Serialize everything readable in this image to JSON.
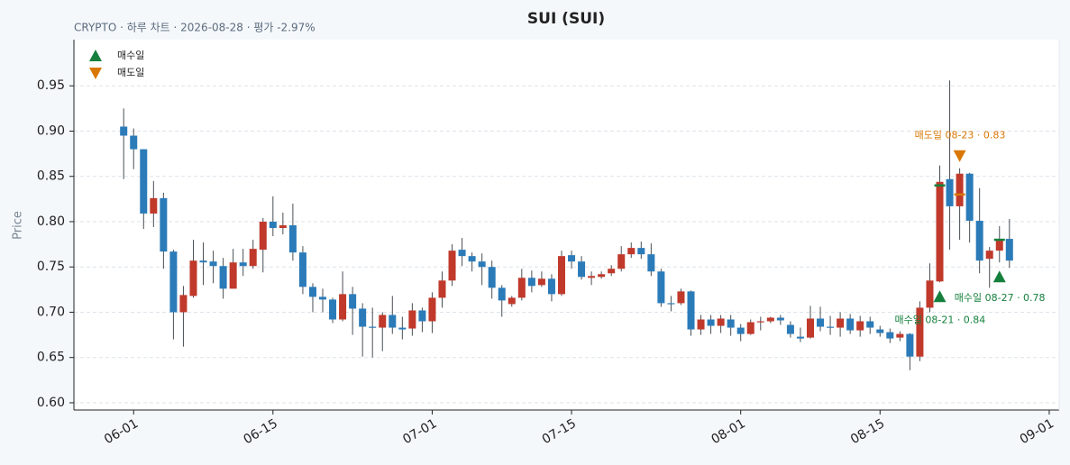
{
  "chart_data": {
    "type": "candlestick",
    "title": "SUI (SUI)",
    "subtitle": "CRYPTO · 하루 차트 · 2026-08-28 · 평가 -2.97%",
    "y_label": "Price",
    "up_color": "#c0392b",
    "down_color": "#2b7bb9",
    "x": [
      "05-31",
      "06-01",
      "06-02",
      "06-03",
      "06-04",
      "06-05",
      "06-06",
      "06-07",
      "06-08",
      "06-09",
      "06-10",
      "06-11",
      "06-12",
      "06-13",
      "06-14",
      "06-15",
      "06-16",
      "06-17",
      "06-18",
      "06-19",
      "06-20",
      "06-21",
      "06-22",
      "06-23",
      "06-24",
      "06-25",
      "06-26",
      "06-27",
      "06-28",
      "06-29",
      "06-30",
      "07-01",
      "07-02",
      "07-03",
      "07-04",
      "07-05",
      "07-06",
      "07-07",
      "07-08",
      "07-09",
      "07-10",
      "07-11",
      "07-12",
      "07-13",
      "07-14",
      "07-15",
      "07-16",
      "07-17",
      "07-18",
      "07-19",
      "07-20",
      "07-21",
      "07-22",
      "07-23",
      "07-24",
      "07-25",
      "07-26",
      "07-27",
      "07-28",
      "07-29",
      "07-30",
      "07-31",
      "08-01",
      "08-02",
      "08-03",
      "08-04",
      "08-05",
      "08-06",
      "08-07",
      "08-08",
      "08-09",
      "08-10",
      "08-11",
      "08-12",
      "08-13",
      "08-14",
      "08-15",
      "08-16",
      "08-17",
      "08-18",
      "08-19",
      "08-20",
      "08-21",
      "08-22",
      "08-23",
      "08-24",
      "08-25",
      "08-26",
      "08-27",
      "08-28"
    ],
    "open": [
      0.905,
      0.895,
      0.88,
      0.809,
      0.826,
      0.767,
      0.7,
      0.718,
      0.757,
      0.756,
      0.751,
      0.726,
      0.755,
      0.751,
      0.769,
      0.8,
      0.793,
      0.796,
      0.766,
      0.728,
      0.717,
      0.714,
      0.692,
      0.72,
      0.704,
      0.684,
      0.683,
      0.697,
      0.683,
      0.682,
      0.702,
      0.69,
      0.716,
      0.735,
      0.769,
      0.762,
      0.756,
      0.75,
      0.727,
      0.709,
      0.716,
      0.738,
      0.73,
      0.737,
      0.72,
      0.763,
      0.756,
      0.738,
      0.739,
      0.743,
      0.748,
      0.764,
      0.771,
      0.764,
      0.745,
      0.71,
      0.71,
      0.723,
      0.681,
      0.692,
      0.685,
      0.692,
      0.683,
      0.676,
      0.689,
      0.69,
      0.694,
      0.686,
      0.673,
      0.672,
      0.693,
      0.684,
      0.683,
      0.693,
      0.68,
      0.69,
      0.681,
      0.678,
      0.672,
      0.676,
      0.651,
      0.705,
      0.734,
      0.847,
      0.817,
      0.853,
      0.801,
      0.759,
      0.768,
      0.781
    ],
    "high": [
      0.925,
      0.903,
      0.88,
      0.845,
      0.832,
      0.769,
      0.729,
      0.78,
      0.777,
      0.768,
      0.76,
      0.77,
      0.77,
      0.78,
      0.804,
      0.828,
      0.81,
      0.82,
      0.773,
      0.732,
      0.726,
      0.716,
      0.745,
      0.728,
      0.71,
      0.705,
      0.7,
      0.718,
      0.695,
      0.71,
      0.705,
      0.722,
      0.745,
      0.775,
      0.782,
      0.766,
      0.765,
      0.757,
      0.73,
      0.718,
      0.748,
      0.746,
      0.745,
      0.742,
      0.768,
      0.768,
      0.762,
      0.745,
      0.745,
      0.752,
      0.773,
      0.777,
      0.778,
      0.776,
      0.748,
      0.718,
      0.726,
      0.724,
      0.697,
      0.697,
      0.697,
      0.697,
      0.687,
      0.692,
      0.695,
      0.695,
      0.697,
      0.69,
      0.683,
      0.707,
      0.706,
      0.696,
      0.7,
      0.698,
      0.696,
      0.695,
      0.685,
      0.682,
      0.679,
      0.677,
      0.712,
      0.754,
      0.862,
      0.956,
      0.859,
      0.854,
      0.837,
      0.772,
      0.795,
      0.803
    ],
    "low": [
      0.847,
      0.858,
      0.792,
      0.794,
      0.748,
      0.67,
      0.662,
      0.716,
      0.73,
      0.732,
      0.715,
      0.726,
      0.74,
      0.748,
      0.744,
      0.784,
      0.786,
      0.757,
      0.72,
      0.7,
      0.7,
      0.688,
      0.69,
      0.675,
      0.651,
      0.65,
      0.657,
      0.676,
      0.67,
      0.674,
      0.678,
      0.677,
      0.705,
      0.729,
      0.751,
      0.745,
      0.73,
      0.715,
      0.695,
      0.706,
      0.713,
      0.722,
      0.728,
      0.712,
      0.718,
      0.748,
      0.736,
      0.73,
      0.737,
      0.74,
      0.745,
      0.76,
      0.759,
      0.74,
      0.706,
      0.701,
      0.708,
      0.674,
      0.675,
      0.676,
      0.677,
      0.674,
      0.668,
      0.675,
      0.68,
      0.688,
      0.686,
      0.672,
      0.667,
      0.671,
      0.679,
      0.675,
      0.673,
      0.676,
      0.673,
      0.676,
      0.673,
      0.666,
      0.668,
      0.636,
      0.646,
      0.7,
      0.733,
      0.769,
      0.78,
      0.777,
      0.743,
      0.727,
      0.755,
      0.749
    ],
    "close": [
      0.895,
      0.88,
      0.809,
      0.826,
      0.767,
      0.7,
      0.719,
      0.757,
      0.755,
      0.751,
      0.726,
      0.755,
      0.751,
      0.77,
      0.8,
      0.793,
      0.796,
      0.766,
      0.728,
      0.717,
      0.714,
      0.692,
      0.72,
      0.704,
      0.684,
      0.683,
      0.697,
      0.683,
      0.681,
      0.702,
      0.69,
      0.716,
      0.735,
      0.768,
      0.762,
      0.756,
      0.75,
      0.727,
      0.713,
      0.716,
      0.738,
      0.729,
      0.737,
      0.72,
      0.762,
      0.756,
      0.739,
      0.74,
      0.742,
      0.748,
      0.764,
      0.771,
      0.764,
      0.745,
      0.71,
      0.709,
      0.723,
      0.681,
      0.692,
      0.685,
      0.693,
      0.683,
      0.676,
      0.689,
      0.69,
      0.694,
      0.691,
      0.676,
      0.671,
      0.693,
      0.684,
      0.683,
      0.693,
      0.68,
      0.69,
      0.683,
      0.677,
      0.671,
      0.676,
      0.651,
      0.705,
      0.735,
      0.844,
      0.817,
      0.853,
      0.801,
      0.757,
      0.768,
      0.781,
      0.757
    ],
    "xlim": [
      "05-26",
      "09-02"
    ],
    "xticks": [
      "06-01",
      "06-15",
      "07-01",
      "07-15",
      "08-01",
      "08-15",
      "09-01"
    ],
    "ylim": [
      0.592,
      1.001
    ],
    "yticks": [
      {
        "value": 0.6,
        "label": "0.60"
      },
      0.65,
      {
        "value": 0.7,
        "label": "0.70"
      },
      0.75,
      {
        "value": 0.8,
        "label": "0.80"
      },
      0.85,
      {
        "value": 0.9,
        "label": "0.90"
      },
      0.95
    ],
    "grid": true,
    "legend": {
      "position": "upper left",
      "entries": [
        {
          "name": "매수일",
          "color": "#15803d",
          "marker": "up"
        },
        {
          "name": "매도일",
          "color": "#d97706",
          "marker": "down"
        }
      ]
    },
    "trades": [
      {
        "kind": "buy",
        "date": "08-21",
        "price": 0.84,
        "label": "매수일 08-21 · 0.84"
      },
      {
        "kind": "sell",
        "date": "08-23",
        "price": 0.83,
        "label": "매도일 08-23 · 0.83"
      },
      {
        "kind": "buy",
        "date": "08-27",
        "price": 0.78,
        "label": "매수일 08-27 · 0.78"
      }
    ]
  }
}
